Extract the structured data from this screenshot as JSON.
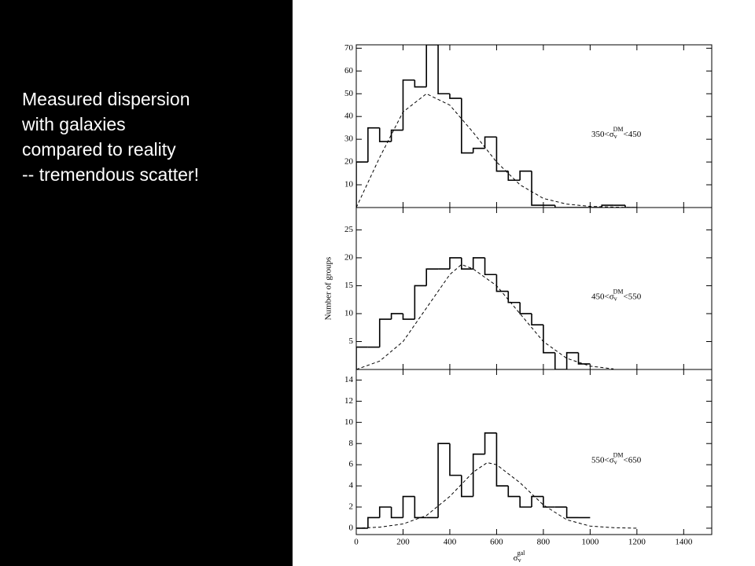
{
  "slide_text": [
    "Measured dispersion",
    "with galaxies",
    "compared to reality",
    "-- tremendous scatter!"
  ],
  "chart_data": [
    {
      "type": "histogram",
      "annotation": [
        "350<σ",
        "v",
        "DM",
        "<450"
      ],
      "bins": [
        0,
        50,
        100,
        150,
        200,
        250,
        300,
        350,
        400,
        450,
        500,
        550,
        600,
        650,
        700,
        750,
        800,
        850,
        900,
        950,
        1000,
        1050,
        1100,
        1150,
        1200
      ],
      "values": [
        20,
        35,
        29,
        34,
        56,
        53,
        71.5,
        50,
        48,
        24,
        26,
        31,
        16,
        12,
        16,
        1,
        1,
        0,
        0,
        0,
        0,
        1,
        1,
        0
      ],
      "fit": {
        "x": [
          0,
          100,
          200,
          300,
          400,
          500,
          600,
          700,
          800,
          900,
          1000,
          1100,
          1200,
          1300
        ],
        "values": [
          0,
          22,
          42,
          50,
          45,
          33,
          20,
          10,
          4,
          1.5,
          0.5,
          0.2,
          0,
          0
        ]
      },
      "xlim": [
        0,
        1520
      ],
      "ylim": [
        0,
        71.5
      ],
      "yticks": [
        10,
        20,
        30,
        40,
        50,
        60,
        70
      ]
    },
    {
      "type": "histogram",
      "annotation": [
        "450<σ",
        "v",
        "DM",
        "<550"
      ],
      "ylabel": "Number of groups",
      "bins": [
        0,
        50,
        100,
        150,
        200,
        250,
        300,
        350,
        400,
        450,
        500,
        550,
        600,
        650,
        700,
        750,
        800,
        850,
        900,
        950,
        1000
      ],
      "values": [
        4,
        4,
        9,
        10,
        9,
        15,
        18,
        18,
        20,
        18,
        20,
        17,
        14,
        12,
        10,
        8,
        3,
        0,
        3,
        1
      ],
      "fit": {
        "x": [
          0,
          100,
          200,
          300,
          400,
          450,
          500,
          600,
          700,
          800,
          900,
          1000,
          1100
        ],
        "values": [
          0,
          1.5,
          5,
          11,
          17,
          18.8,
          18,
          15,
          10,
          5,
          2,
          0.6,
          0.1
        ]
      },
      "xlim": [
        0,
        1520
      ],
      "ylim": [
        0,
        29
      ],
      "yticks": [
        5,
        10,
        15,
        20,
        25
      ]
    },
    {
      "type": "histogram",
      "annotation": [
        "550<σ",
        "v",
        "DM",
        "<650"
      ],
      "xlabel": [
        "σ",
        "v",
        "gal"
      ],
      "bins": [
        0,
        50,
        100,
        150,
        200,
        250,
        300,
        350,
        400,
        450,
        500,
        550,
        600,
        650,
        700,
        750,
        800,
        850,
        900,
        950,
        1000
      ],
      "values": [
        0,
        1,
        2,
        1,
        3,
        1,
        1,
        8,
        5,
        3,
        7,
        9,
        4,
        3,
        2,
        3,
        2,
        2,
        1,
        1
      ],
      "fit": {
        "x": [
          0,
          100,
          200,
          300,
          400,
          500,
          560,
          600,
          700,
          800,
          900,
          1000,
          1100,
          1200
        ],
        "values": [
          0,
          0.1,
          0.4,
          1.2,
          3,
          5.3,
          6.2,
          6,
          4.3,
          2.2,
          0.8,
          0.2,
          0.05,
          0
        ]
      },
      "xlim": [
        0,
        1520
      ],
      "ylim": [
        -0.6,
        15
      ],
      "yticks": [
        0,
        2,
        4,
        6,
        8,
        10,
        12,
        14
      ],
      "xticks": [
        0,
        200,
        400,
        600,
        800,
        1000,
        1200,
        1400
      ]
    }
  ]
}
